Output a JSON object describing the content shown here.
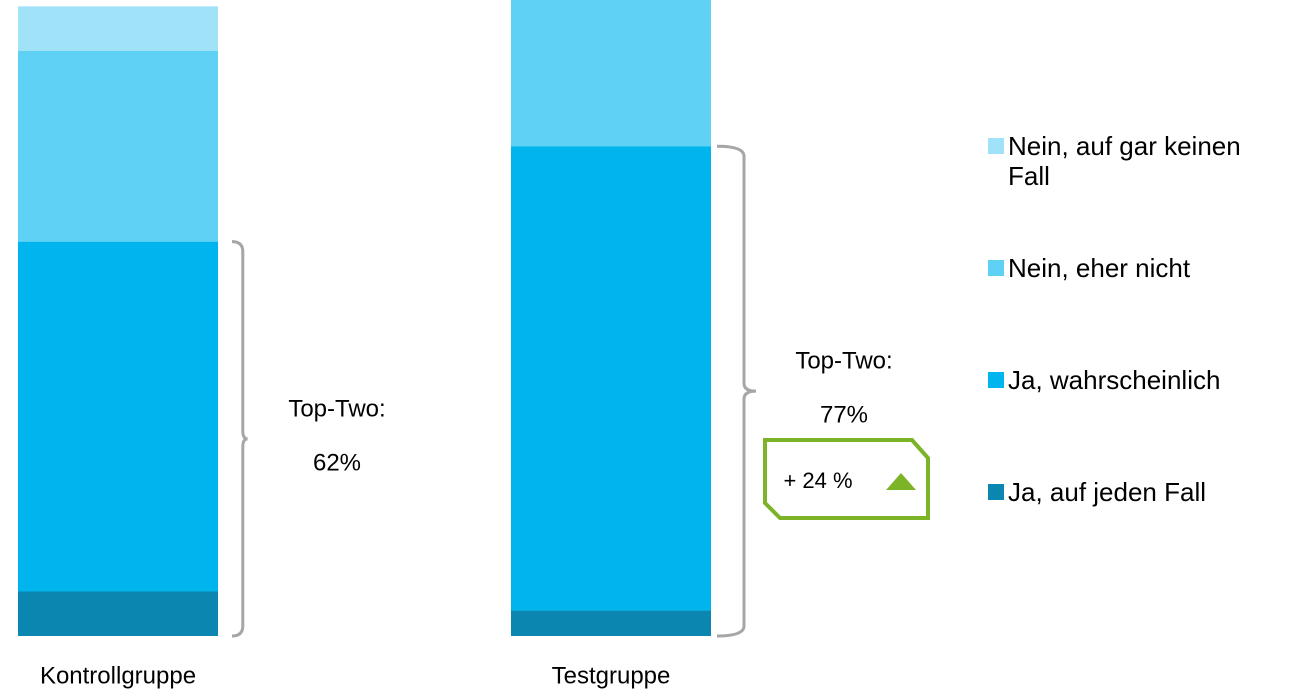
{
  "chart_data": {
    "type": "bar",
    "stacked": true,
    "categories": [
      "Kontrollgruppe",
      "Testgruppe"
    ],
    "series": [
      {
        "name": "Ja, auf jeden Fall",
        "color": "#0a86b0",
        "values": [
          7,
          4
        ]
      },
      {
        "name": "Ja, wahrscheinlich",
        "color": "#00b5ee",
        "values": [
          55,
          73
        ]
      },
      {
        "name": "Nein, eher nicht",
        "color": "#5fd1f5",
        "values": [
          30,
          23
        ]
      },
      {
        "name": "Nein, auf gar keinen Fall",
        "color": "#a0e2f8",
        "values": [
          7,
          0
        ]
      }
    ],
    "annotations": [
      {
        "label": "Top-Two:",
        "value_label": "62%"
      },
      {
        "label": "Top-Two:",
        "value_label": "77%"
      }
    ],
    "change_label": "+ 24 %"
  }
}
